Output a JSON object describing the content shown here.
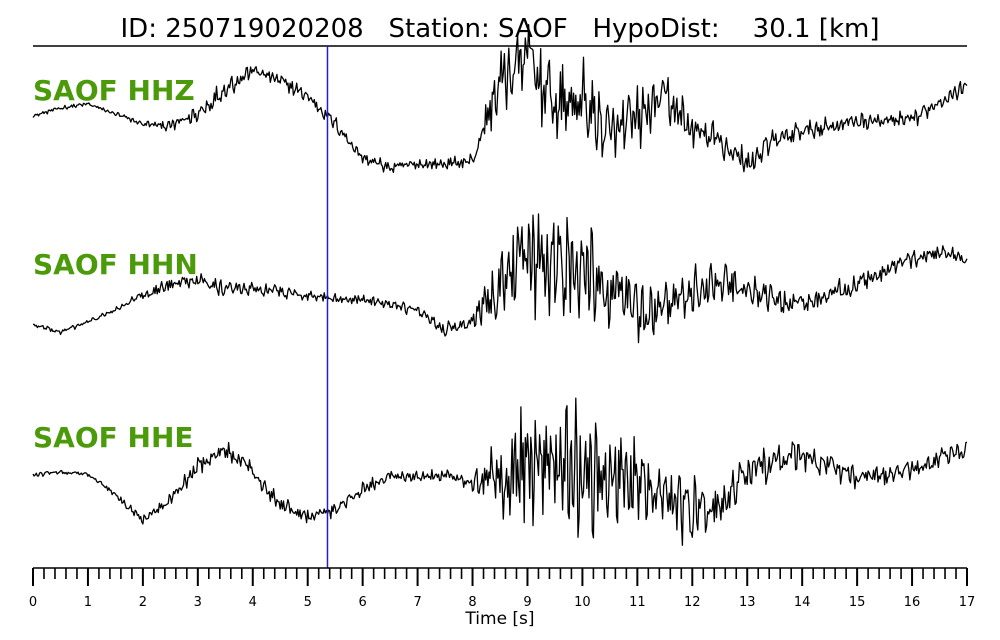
{
  "chart_data": {
    "type": "line",
    "title": "ID: 250719020208   Station: SAOF   HypoDist:    30.1 [km]",
    "xlabel": "Time [s]",
    "xlim": [
      0,
      17
    ],
    "x_ticks": [
      "0",
      "1",
      "2",
      "3",
      "4",
      "5",
      "6",
      "7",
      "8",
      "9",
      "10",
      "11",
      "12",
      "13",
      "14",
      "15",
      "16",
      "17"
    ],
    "minor_tick_step_s": 0.2,
    "pick_time_s": 5.36,
    "pick_color": "#1f1fd6",
    "label_color": "#4a9a0a",
    "trace_color": "#000000",
    "traces": [
      {
        "name": "SAOF HHZ",
        "sample_step_s": 0.5,
        "amplitude": [
          0.1,
          0.18,
          0.22,
          0.12,
          0.02,
          0.0,
          0.12,
          0.38,
          0.56,
          0.45,
          0.3,
          0.02,
          -0.32,
          -0.42,
          -0.38,
          -0.38,
          -0.35,
          0.45,
          0.7,
          0.2,
          0.25,
          -0.1,
          0.06,
          0.3,
          -0.05,
          -0.15,
          -0.38,
          -0.15,
          -0.05,
          0.0,
          0.05,
          0.05,
          0.05,
          0.25,
          0.4,
          0.3,
          0.0,
          -0.22,
          -0.3,
          -0.4,
          -0.2,
          -0.05,
          0.05,
          0.15,
          0.25,
          0.38,
          0.42,
          0.3,
          0.2,
          0.15,
          0.05,
          -0.05
        ],
        "noise": [
          0.02,
          0.02,
          0.02,
          0.02,
          0.03,
          0.05,
          0.1,
          0.1,
          0.08,
          0.07,
          0.07,
          0.06,
          0.05,
          0.06,
          0.06,
          0.05,
          0.07,
          0.3,
          0.45,
          0.42,
          0.35,
          0.3,
          0.28,
          0.22,
          0.18,
          0.16,
          0.14,
          0.12,
          0.1,
          0.08,
          0.08,
          0.08,
          0.08,
          0.07,
          0.06,
          0.06,
          0.05,
          0.05,
          0.05,
          0.05,
          0.06,
          0.06,
          0.05,
          0.05,
          0.05,
          0.05,
          0.05,
          0.05,
          0.05,
          0.05,
          0.05,
          0.05
        ]
      },
      {
        "name": "SAOF HHN",
        "sample_step_s": 0.5,
        "amplitude": [
          -0.35,
          -0.42,
          -0.32,
          -0.2,
          -0.05,
          0.05,
          0.12,
          0.0,
          0.02,
          -0.02,
          -0.05,
          -0.08,
          -0.1,
          -0.15,
          -0.22,
          -0.4,
          -0.3,
          0.1,
          0.3,
          0.3,
          0.2,
          0.0,
          -0.2,
          -0.15,
          0.0,
          0.05,
          0.0,
          -0.1,
          -0.15,
          -0.05,
          0.05,
          0.2,
          0.3,
          0.38,
          0.32,
          0.25,
          0.1,
          -0.2,
          -0.45,
          -0.3,
          0.0,
          0.25,
          0.25,
          0.0,
          -0.2,
          -0.35,
          -0.3,
          -0.2,
          -0.05,
          0.05,
          0.1,
          0.12
        ],
        "noise": [
          0.02,
          0.02,
          0.02,
          0.02,
          0.04,
          0.06,
          0.07,
          0.07,
          0.06,
          0.06,
          0.06,
          0.05,
          0.05,
          0.05,
          0.05,
          0.06,
          0.08,
          0.3,
          0.55,
          0.5,
          0.42,
          0.35,
          0.3,
          0.25,
          0.2,
          0.18,
          0.15,
          0.12,
          0.1,
          0.1,
          0.09,
          0.08,
          0.08,
          0.07,
          0.07,
          0.06,
          0.06,
          0.05,
          0.05,
          0.05,
          0.05,
          0.05,
          0.05,
          0.05,
          0.05,
          0.05,
          0.05,
          0.05,
          0.05,
          0.05,
          0.05,
          0.05
        ]
      },
      {
        "name": "SAOF HHE",
        "sample_step_s": 0.5,
        "amplitude": [
          0.05,
          0.08,
          0.06,
          -0.15,
          -0.4,
          -0.2,
          0.15,
          0.28,
          0.1,
          -0.25,
          -0.35,
          -0.3,
          -0.1,
          0.05,
          0.02,
          0.05,
          -0.05,
          0.05,
          0.1,
          0.2,
          0.15,
          0.0,
          0.0,
          -0.15,
          -0.35,
          -0.25,
          0.05,
          0.2,
          0.25,
          0.15,
          0.0,
          0.05,
          0.1,
          0.22,
          0.3,
          0.1,
          -0.25,
          -0.35,
          -0.3,
          -0.1,
          0.05,
          0.08,
          0.12,
          0.2,
          0.28,
          0.3,
          0.2,
          0.15,
          0.05,
          -0.05,
          -0.18,
          -0.35
        ],
        "noise": [
          0.02,
          0.02,
          0.02,
          0.03,
          0.04,
          0.06,
          0.08,
          0.09,
          0.08,
          0.08,
          0.07,
          0.07,
          0.06,
          0.06,
          0.06,
          0.07,
          0.08,
          0.3,
          0.65,
          0.62,
          0.55,
          0.45,
          0.38,
          0.35,
          0.3,
          0.2,
          0.18,
          0.16,
          0.14,
          0.12,
          0.1,
          0.1,
          0.09,
          0.08,
          0.08,
          0.07,
          0.06,
          0.06,
          0.06,
          0.05,
          0.05,
          0.05,
          0.05,
          0.05,
          0.05,
          0.05,
          0.05,
          0.05,
          0.05,
          0.05,
          0.05,
          0.05
        ]
      }
    ]
  }
}
